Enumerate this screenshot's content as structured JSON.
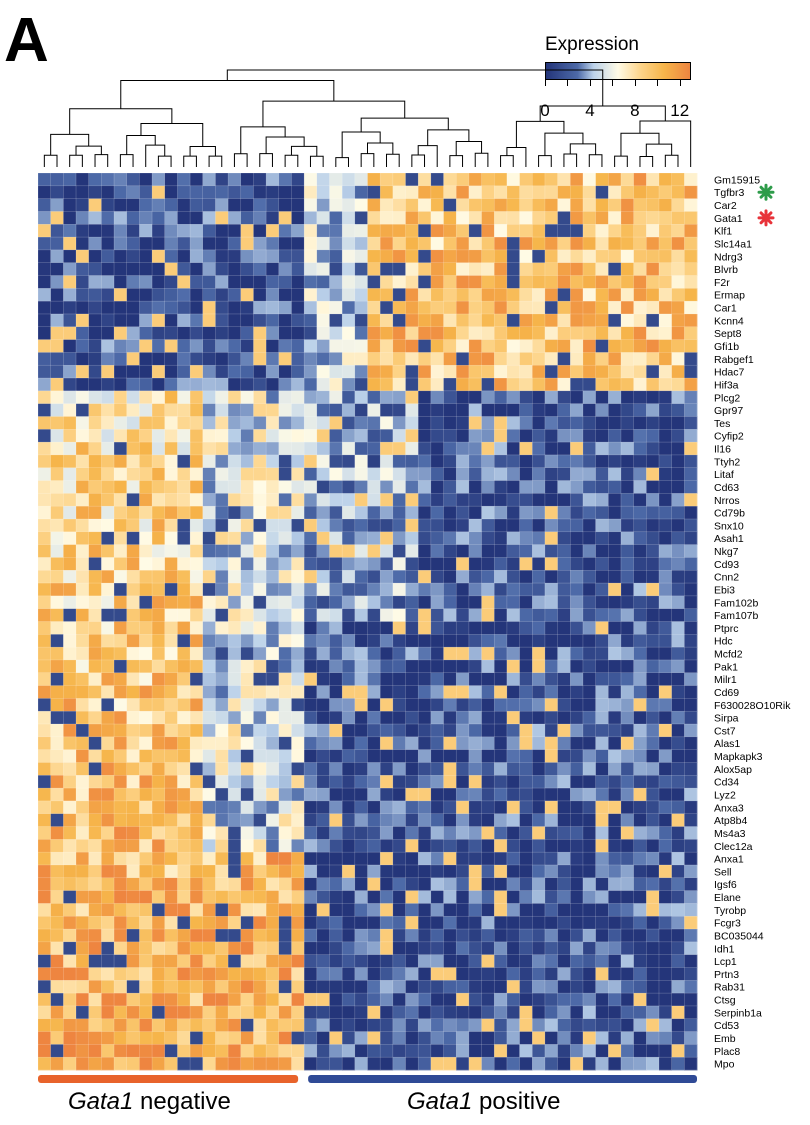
{
  "panel_letter": "A",
  "legend": {
    "title": "Expression",
    "ticks": [
      "0",
      "4",
      "8",
      "12"
    ],
    "range": [
      0,
      13
    ]
  },
  "colors": {
    "low": "#24357a",
    "mid_low": "#4d6aa8",
    "light_blue": "#bcd2ea",
    "mid": "#fffbe6",
    "mid_high": "#fdd489",
    "high_orange": "#f6b54a",
    "max": "#ee8540",
    "gata1_negative_bar": "#e8632b",
    "gata1_positive_bar": "#2f4a96",
    "tgfbr3_marker": "#2e9c4a",
    "gata1_marker": "#e8333a"
  },
  "groups": [
    {
      "italic": "Gata1",
      "label": " negative",
      "color": "#e8632b",
      "cells": 21
    },
    {
      "italic": "Gata1",
      "label": " positive",
      "color": "#2f4a96",
      "cells": 31
    }
  ],
  "chart_data": {
    "type": "heatmap",
    "title": "",
    "legend_title": "Expression",
    "color_scale": [
      0,
      13
    ],
    "columns": 52,
    "genes": [
      "Gm15915",
      "Tgfbr3",
      "Car2",
      "Gata1",
      "Klf1",
      "Slc14a1",
      "Ndrg3",
      "Blvrb",
      "F2r",
      "Ermap",
      "Car1",
      "Kcnn4",
      "Sept8",
      "Gfi1b",
      "Rabgef1",
      "Hdac7",
      "Hif3a",
      "Plcg2",
      "Gpr97",
      "Tes",
      "Cyfip2",
      "Il16",
      "Ttyh2",
      "Litaf",
      "Cd63",
      "Nrros",
      "Cd79b",
      "Snx10",
      "Asah1",
      "Nkg7",
      "Cd93",
      "Cnn2",
      "Ebi3",
      "Fam102b",
      "Fam107b",
      "Ptprc",
      "Hdc",
      "Mcfd2",
      "Pak1",
      "Milr1",
      "Cd69",
      "F630028O10Rik",
      "Sirpa",
      "Cst7",
      "Alas1",
      "Mapkapk3",
      "Alox5ap",
      "Cd34",
      "Lyz2",
      "Anxa3",
      "Atp8b4",
      "Ms4a3",
      "Clec12a",
      "Anxa1",
      "Sell",
      "Igsf6",
      "Elane",
      "Tyrobp",
      "Fcgr3",
      "BC035044",
      "Idh1",
      "Lcp1",
      "Prtn3",
      "Rab31",
      "Ctsg",
      "Serpinb1a",
      "Cd53",
      "Emb",
      "Plac8",
      "Mpo"
    ],
    "marked_genes": [
      {
        "gene": "Tgfbr3",
        "marker": "green asterisk"
      },
      {
        "gene": "Gata1",
        "marker": "red asterisk"
      }
    ],
    "group_columns": {
      "Gata1 negative": [
        0,
        20
      ],
      "Gata1 positive": [
        21,
        51
      ]
    },
    "row_cluster_pattern": "first 17 genes high in Gata1 positive cells; remaining 53 genes high in Gata1 negative cells",
    "column_dendrogram": true
  }
}
